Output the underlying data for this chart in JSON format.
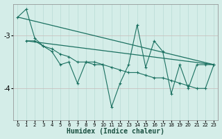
{
  "xlabel": "Humidex (Indice chaleur)",
  "bg_color": "#d4ede8",
  "grid_color": "#b8dbd5",
  "line_color": "#1a7060",
  "xlim": [
    -0.5,
    23.5
  ],
  "ylim": [
    -4.6,
    -2.4
  ],
  "yticks": [
    -4,
    -3
  ],
  "xticks": [
    0,
    1,
    2,
    3,
    4,
    5,
    6,
    7,
    8,
    9,
    10,
    11,
    12,
    13,
    14,
    15,
    16,
    17,
    18,
    19,
    20,
    21,
    22,
    23
  ],
  "jagged1_x": [
    0,
    1,
    2,
    3,
    4,
    5,
    6,
    7,
    8,
    9,
    10,
    11,
    12,
    13,
    14,
    15,
    16,
    17,
    18,
    19,
    20,
    21,
    22,
    23
  ],
  "jagged1_y": [
    -2.65,
    -2.5,
    -3.05,
    -3.2,
    -3.3,
    -3.55,
    -3.5,
    -3.9,
    -3.5,
    -3.5,
    -3.55,
    -4.35,
    -3.9,
    -3.55,
    -2.8,
    -3.6,
    -3.1,
    -3.3,
    -4.1,
    -3.55,
    -4.0,
    -3.55,
    -3.55,
    -3.55
  ],
  "jagged2_x": [
    1,
    2,
    3,
    4,
    5,
    6,
    7,
    8,
    9,
    10,
    11,
    12,
    13,
    14,
    15,
    16,
    17,
    18,
    19,
    20,
    21,
    22,
    23
  ],
  "jagged2_y": [
    -3.1,
    -3.1,
    -3.2,
    -3.25,
    -3.35,
    -3.4,
    -3.5,
    -3.5,
    -3.55,
    -3.55,
    -3.6,
    -3.65,
    -3.7,
    -3.7,
    -3.75,
    -3.8,
    -3.8,
    -3.85,
    -3.9,
    -3.95,
    -4.0,
    -4.0,
    -3.55
  ],
  "trend1_x": [
    0,
    23
  ],
  "trend1_y": [
    -2.65,
    -3.55
  ],
  "trend2_x": [
    1,
    23
  ],
  "trend2_y": [
    -3.1,
    -3.55
  ]
}
